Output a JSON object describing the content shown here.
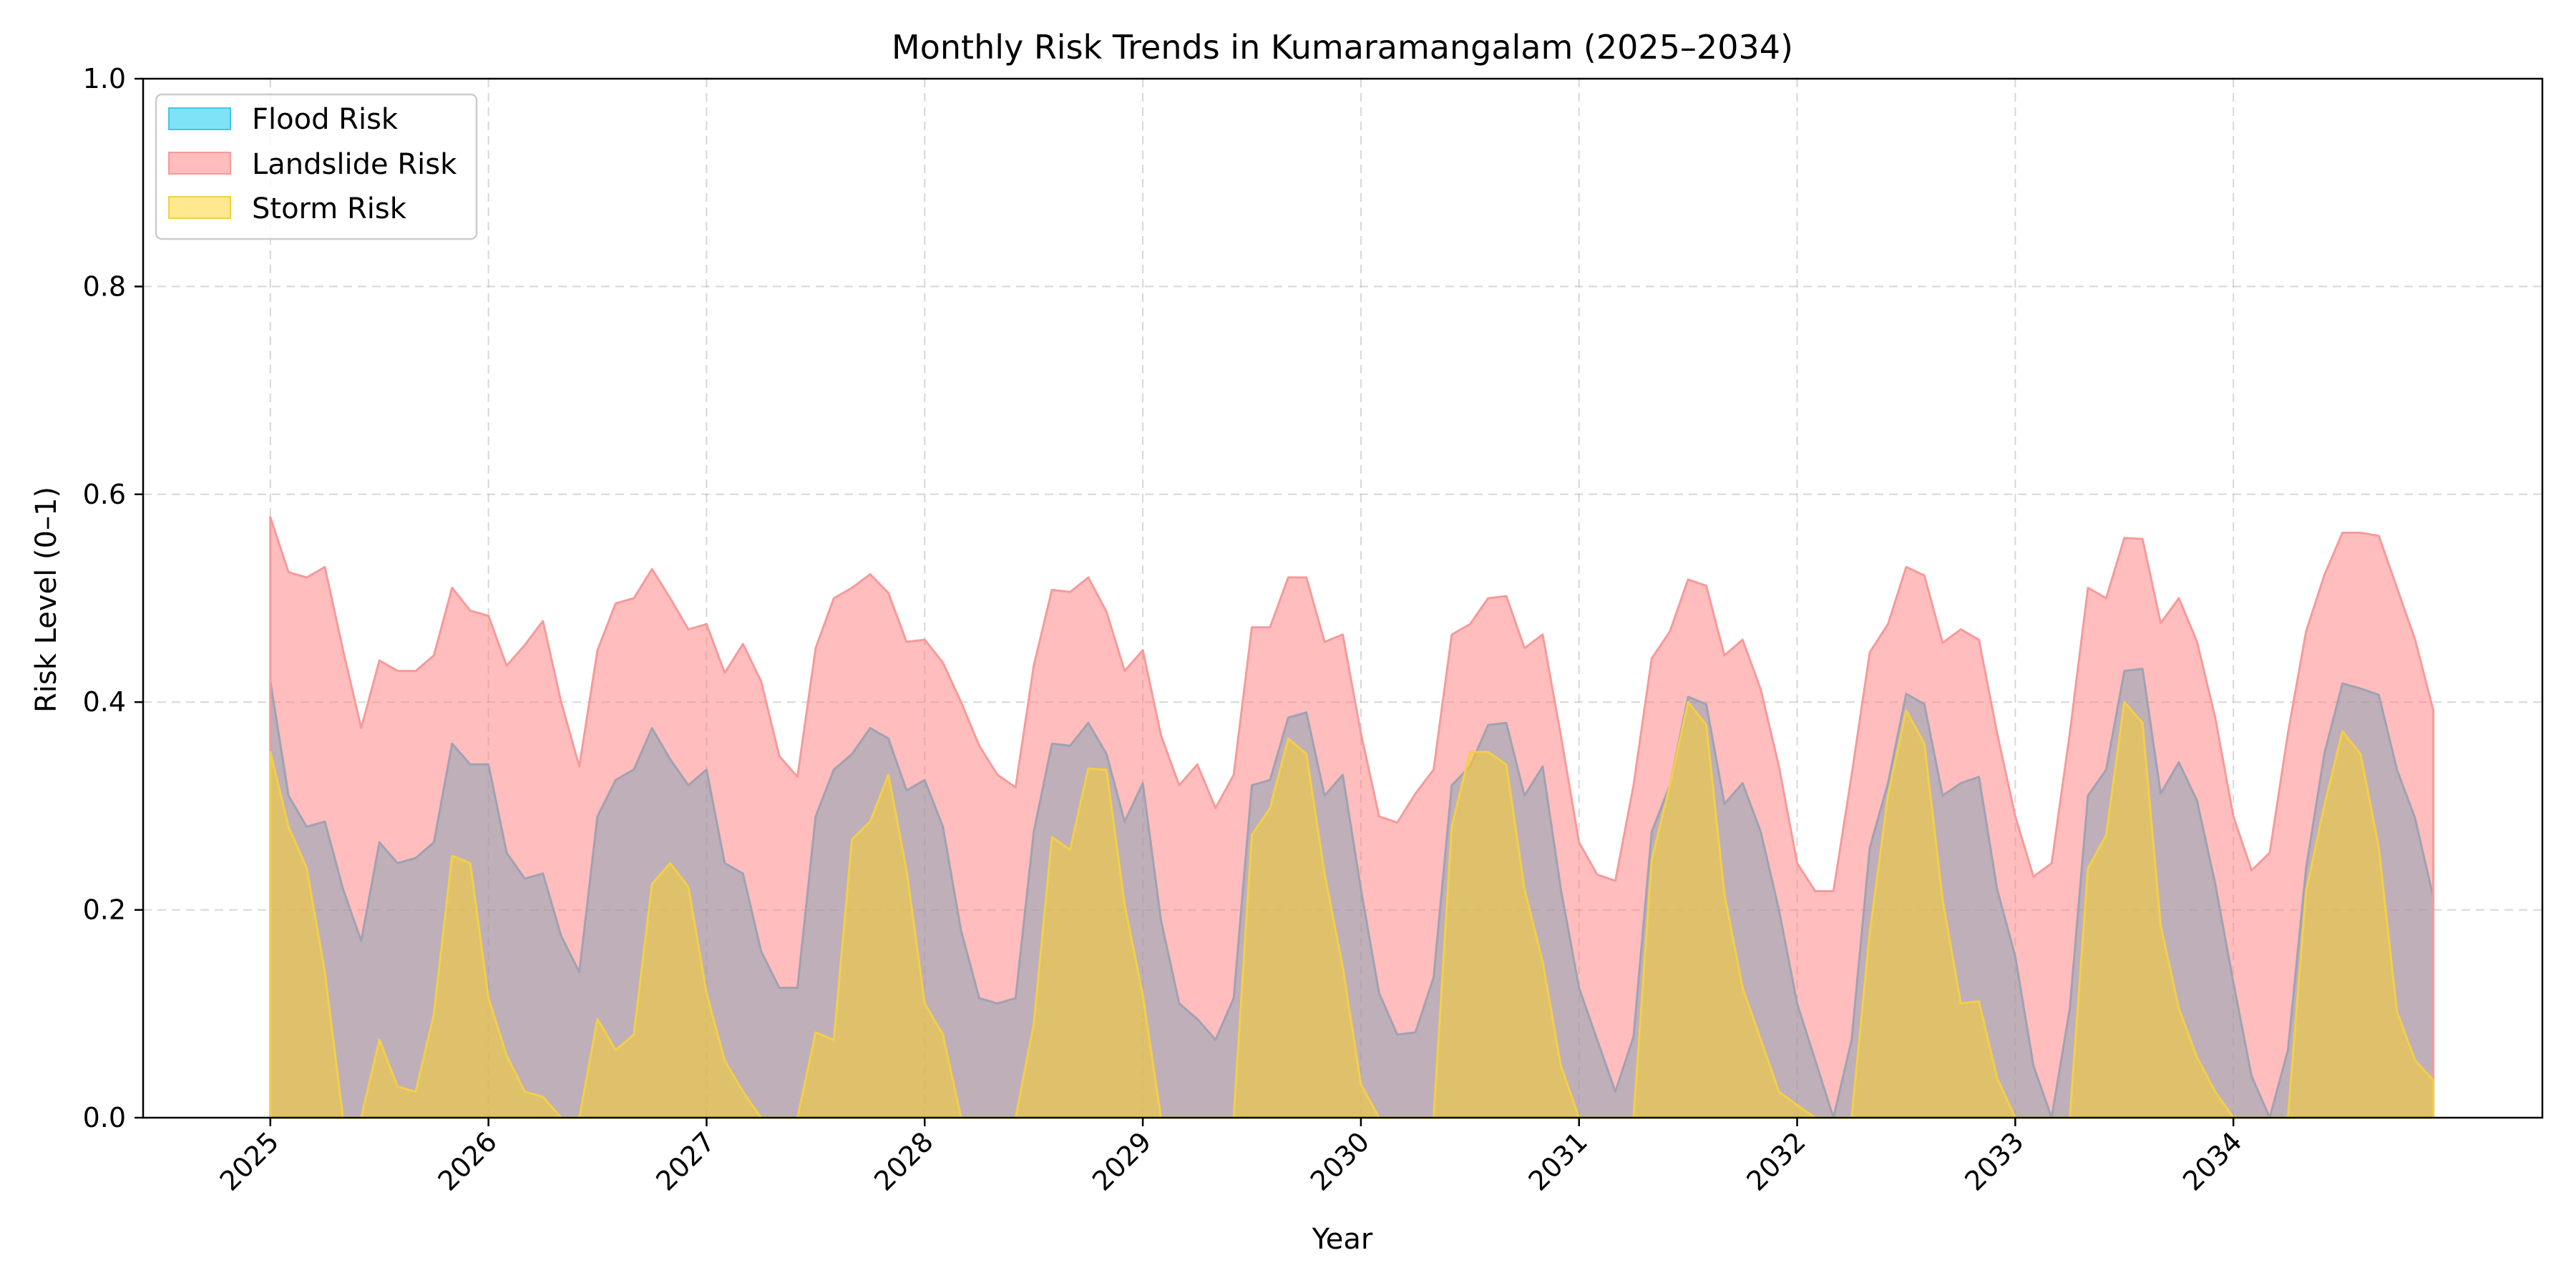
{
  "chart_data": {
    "type": "area",
    "title": "Monthly Risk Trends in Kumaramangalam (2025–2034)",
    "xlabel": "Year",
    "ylabel": "Risk Level (0–1)",
    "x_start": "2025-01",
    "x_end": "2034-12",
    "xlim": [
      "2024-06",
      "2035-06"
    ],
    "ylim": [
      0,
      1
    ],
    "x_ticks": [
      "2025",
      "2026",
      "2027",
      "2028",
      "2029",
      "2030",
      "2031",
      "2032",
      "2033",
      "2034"
    ],
    "y_ticks": [
      "0.0",
      "0.2",
      "0.4",
      "0.6",
      "0.8",
      "1.0"
    ],
    "grid": true,
    "legend_position": "upper-left",
    "series": [
      {
        "name": "Flood Risk",
        "color": "#00c8f0",
        "stroke": "#3ec9e8",
        "values": [
          0.42,
          0.31,
          0.28,
          0.285,
          0.22,
          0.17,
          0.265,
          0.245,
          0.25,
          0.265,
          0.36,
          0.34,
          0.34,
          0.255,
          0.23,
          0.235,
          0.175,
          0.14,
          0.29,
          0.325,
          0.335,
          0.375,
          0.345,
          0.32,
          0.335,
          0.245,
          0.235,
          0.16,
          0.125,
          0.125,
          0.29,
          0.335,
          0.35,
          0.375,
          0.365,
          0.315,
          0.325,
          0.28,
          0.18,
          0.115,
          0.11,
          0.115,
          0.275,
          0.36,
          0.358,
          0.38,
          0.35,
          0.285,
          0.322,
          0.19,
          0.11,
          0.095,
          0.075,
          0.115,
          0.32,
          0.325,
          0.385,
          0.39,
          0.31,
          0.33,
          0.22,
          0.12,
          0.08,
          0.082,
          0.135,
          0.32,
          0.338,
          0.378,
          0.38,
          0.31,
          0.338,
          0.22,
          0.125,
          0.075,
          0.025,
          0.078,
          0.275,
          0.32,
          0.405,
          0.398,
          0.302,
          0.322,
          0.275,
          0.2,
          0.11,
          0.055,
          0.0,
          0.075,
          0.26,
          0.322,
          0.408,
          0.398,
          0.31,
          0.322,
          0.328,
          0.22,
          0.155,
          0.05,
          0.0,
          0.105,
          0.31,
          0.335,
          0.43,
          0.432,
          0.312,
          0.342,
          0.305,
          0.225,
          0.13,
          0.04,
          0.0,
          0.065,
          0.24,
          0.35,
          0.418,
          0.413,
          0.407,
          0.335,
          0.288,
          0.212
        ]
      },
      {
        "name": "Landslide Risk",
        "color": "#ff7b7b",
        "stroke": "#f69a9a",
        "values": [
          0.578,
          0.525,
          0.52,
          0.53,
          0.45,
          0.375,
          0.44,
          0.43,
          0.43,
          0.445,
          0.51,
          0.488,
          0.483,
          0.435,
          0.455,
          0.478,
          0.4,
          0.338,
          0.45,
          0.495,
          0.5,
          0.528,
          0.5,
          0.47,
          0.475,
          0.428,
          0.456,
          0.42,
          0.348,
          0.328,
          0.452,
          0.5,
          0.51,
          0.523,
          0.505,
          0.458,
          0.46,
          0.438,
          0.4,
          0.358,
          0.33,
          0.318,
          0.435,
          0.508,
          0.506,
          0.52,
          0.487,
          0.43,
          0.45,
          0.368,
          0.32,
          0.34,
          0.298,
          0.33,
          0.472,
          0.472,
          0.52,
          0.52,
          0.458,
          0.465,
          0.37,
          0.29,
          0.284,
          0.312,
          0.335,
          0.465,
          0.475,
          0.5,
          0.502,
          0.452,
          0.465,
          0.368,
          0.265,
          0.234,
          0.228,
          0.32,
          0.442,
          0.468,
          0.518,
          0.512,
          0.445,
          0.46,
          0.412,
          0.338,
          0.245,
          0.218,
          0.218,
          0.33,
          0.448,
          0.475,
          0.53,
          0.522,
          0.457,
          0.47,
          0.46,
          0.37,
          0.29,
          0.232,
          0.245,
          0.37,
          0.51,
          0.5,
          0.558,
          0.557,
          0.476,
          0.5,
          0.458,
          0.385,
          0.29,
          0.238,
          0.255,
          0.37,
          0.468,
          0.522,
          0.563,
          0.563,
          0.56,
          0.51,
          0.46,
          0.392
        ]
      },
      {
        "name": "Storm Risk",
        "color": "#ffd21e",
        "stroke": "#f2cf4a",
        "values": [
          0.352,
          0.28,
          0.24,
          0.14,
          0.0,
          0.0,
          0.075,
          0.03,
          0.025,
          0.1,
          0.252,
          0.245,
          0.115,
          0.06,
          0.025,
          0.02,
          0.0,
          0.0,
          0.095,
          0.065,
          0.08,
          0.225,
          0.245,
          0.222,
          0.12,
          0.055,
          0.025,
          0.0,
          0.0,
          0.0,
          0.082,
          0.075,
          0.268,
          0.285,
          0.33,
          0.238,
          0.11,
          0.08,
          0.0,
          0.0,
          0.0,
          0.0,
          0.09,
          0.27,
          0.258,
          0.336,
          0.335,
          0.205,
          0.118,
          0.0,
          0.0,
          0.0,
          0.0,
          0.0,
          0.272,
          0.298,
          0.365,
          0.35,
          0.235,
          0.145,
          0.032,
          0.0,
          0.0,
          0.0,
          0.0,
          0.28,
          0.352,
          0.352,
          0.34,
          0.22,
          0.15,
          0.05,
          0.0,
          0.0,
          0.0,
          0.0,
          0.248,
          0.32,
          0.4,
          0.378,
          0.215,
          0.125,
          0.075,
          0.025,
          0.012,
          0.0,
          0.0,
          0.0,
          0.178,
          0.31,
          0.392,
          0.36,
          0.21,
          0.11,
          0.112,
          0.038,
          0.0,
          0.0,
          0.0,
          0.0,
          0.24,
          0.272,
          0.4,
          0.38,
          0.185,
          0.105,
          0.058,
          0.025,
          0.0,
          0.0,
          0.0,
          0.0,
          0.218,
          0.3,
          0.372,
          0.35,
          0.26,
          0.102,
          0.055,
          0.036
        ]
      }
    ]
  }
}
